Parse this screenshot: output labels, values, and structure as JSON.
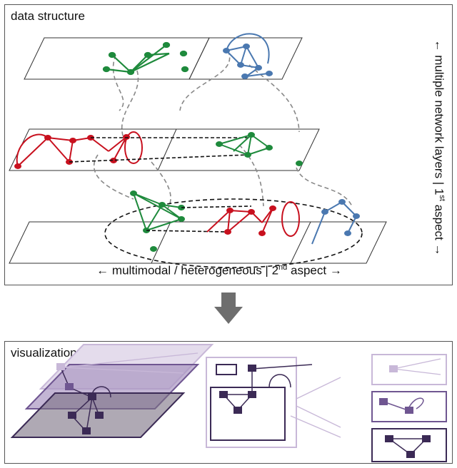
{
  "top_panel": {
    "title": "data structure",
    "x_axis": {
      "arrow_left": "←",
      "text": "multimodal / heterogeneous | 2",
      "superscript": "nd",
      "suffix": " aspect",
      "arrow_right": "→"
    },
    "y_axis": {
      "arrow_start": "←",
      "text": " multiple network layers | 1",
      "superscript": "st",
      "suffix": " aspect ",
      "arrow_end": "→"
    }
  },
  "bottom_panel": {
    "title": "visualization"
  },
  "colors": {
    "green": "#1e8a3c",
    "red": "#c8101e",
    "blue": "#4a78b0",
    "purple_light": "#c8b8d8",
    "purple_mid": "#8a72a8",
    "purple_dark": "#3b2a55",
    "connector": "#888888"
  }
}
